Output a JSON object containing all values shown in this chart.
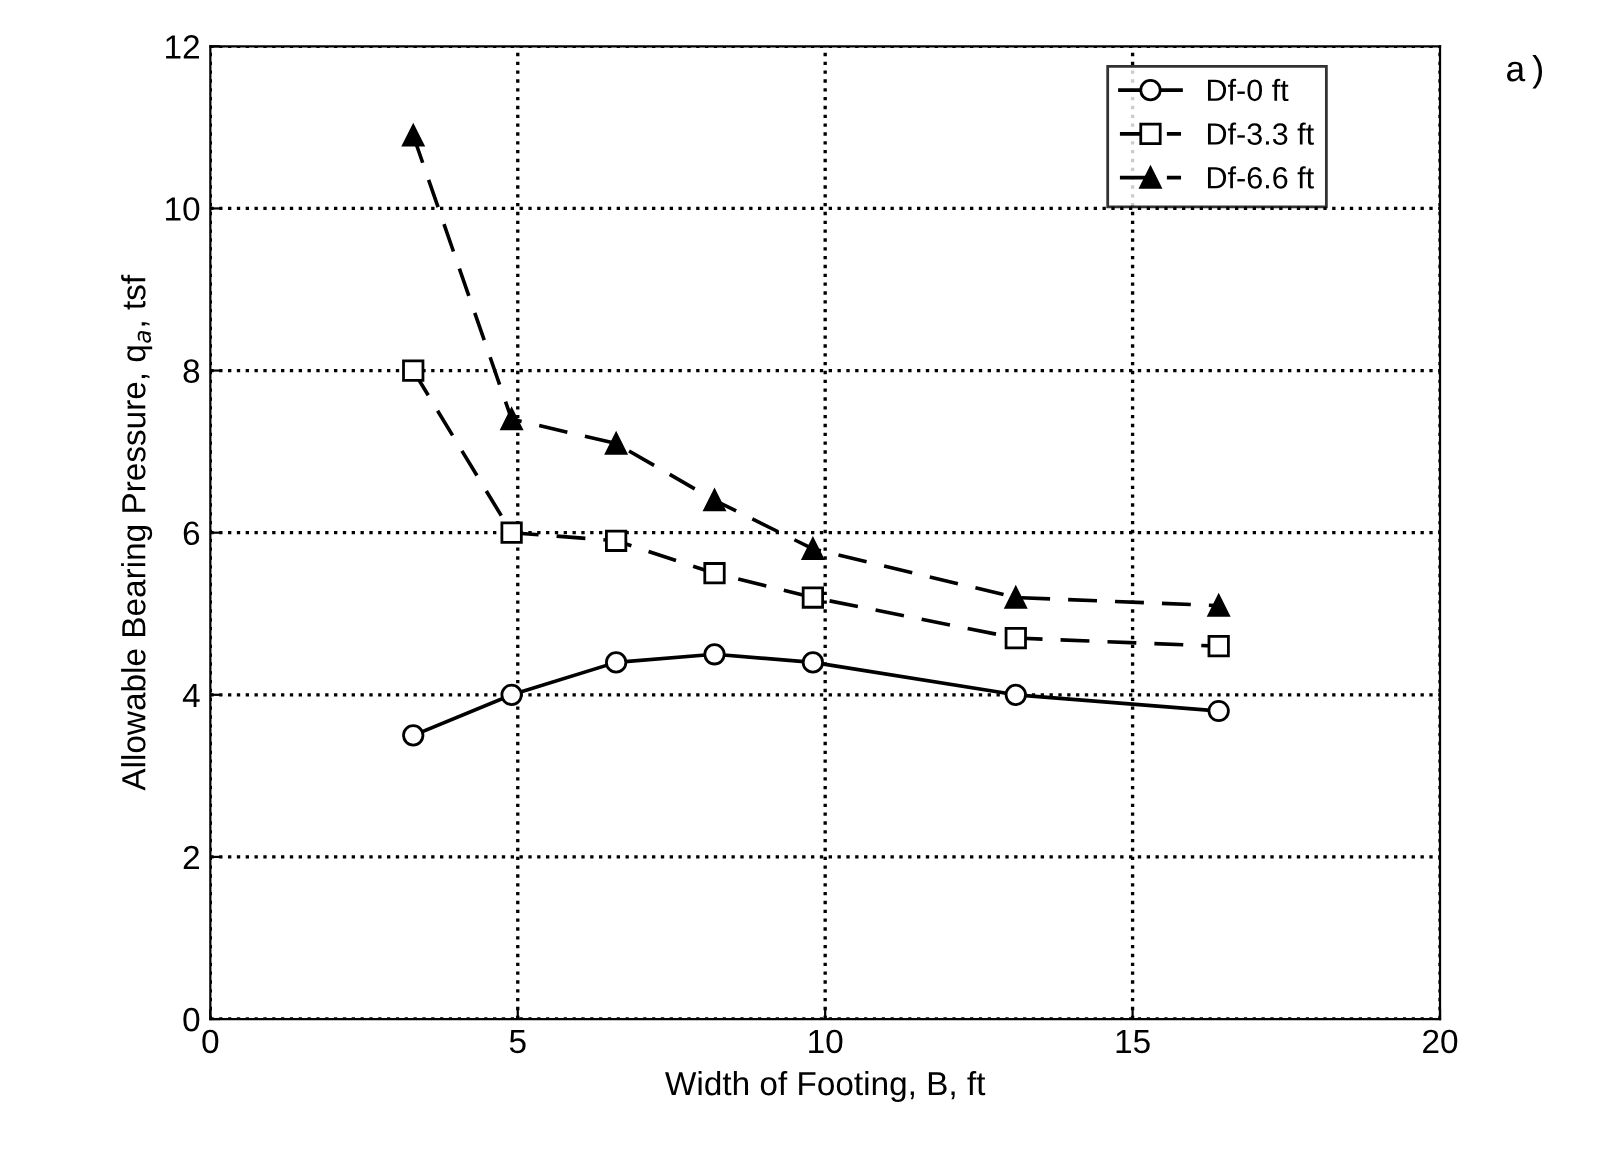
{
  "chart_data": {
    "type": "line",
    "xlabel": "Width of Footing, B, ft",
    "ylabel": "Allowable Bearing Pressure, q$_{a}$, tsf",
    "annotations": [
      "a)"
    ],
    "xlim": [
      0,
      20
    ],
    "xticks": [
      0,
      5,
      10,
      15,
      20
    ],
    "ylim": [
      0,
      12
    ],
    "yticks": [
      0,
      2,
      4,
      6,
      8,
      10,
      12
    ],
    "grid": true,
    "legend": "top right",
    "series": [
      {
        "name": "Df-0 ft",
        "color": "#000000",
        "marker": "circle",
        "line_style": "solid",
        "x": [
          3.3,
          4.9,
          6.6,
          8.2,
          9.8,
          13.1,
          16.4
        ],
        "values": [
          3.5,
          4.0,
          4.4,
          4.5,
          4.4,
          4.0,
          3.8
        ]
      },
      {
        "name": "Df-3.3 ft",
        "color": "#000000",
        "marker": "square",
        "line_style": "dashed",
        "x": [
          3.3,
          4.9,
          6.6,
          8.2,
          9.8,
          13.1,
          16.4
        ],
        "values": [
          8.0,
          6.0,
          5.9,
          5.5,
          5.2,
          4.7,
          4.6
        ]
      },
      {
        "name": "Df-6.6 ft",
        "color": "#000000",
        "marker": "triangle",
        "line_style": "dashed",
        "x": [
          3.3,
          4.9,
          6.6,
          8.2,
          9.8,
          13.1,
          16.4
        ],
        "values": [
          10.9,
          7.4,
          7.1,
          6.4,
          5.8,
          5.2,
          5.1
        ]
      }
    ]
  }
}
